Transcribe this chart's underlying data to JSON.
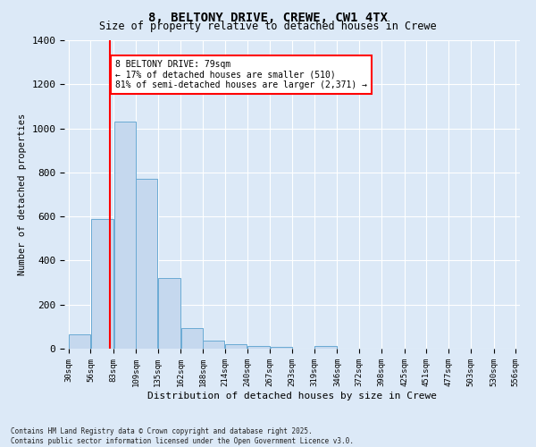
{
  "title1": "8, BELTONY DRIVE, CREWE, CW1 4TX",
  "title2": "Size of property relative to detached houses in Crewe",
  "xlabel": "Distribution of detached houses by size in Crewe",
  "ylabel": "Number of detached properties",
  "bar_color": "#c5d8ee",
  "bar_edge_color": "#6aaad4",
  "background_color": "#dce9f7",
  "grid_color": "#ffffff",
  "vline_x": 79,
  "vline_color": "red",
  "annotation_text": "8 BELTONY DRIVE: 79sqm\n← 17% of detached houses are smaller (510)\n81% of semi-detached houses are larger (2,371) →",
  "annotation_box_color": "white",
  "annotation_box_edge": "red",
  "bins": [
    30,
    56,
    83,
    109,
    135,
    162,
    188,
    214,
    240,
    267,
    293,
    319,
    346,
    372,
    398,
    425,
    451,
    477,
    503,
    530,
    556
  ],
  "counts": [
    65,
    590,
    1030,
    770,
    320,
    95,
    38,
    22,
    13,
    10,
    0,
    13,
    0,
    0,
    0,
    0,
    0,
    0,
    0,
    0
  ],
  "ylim": [
    0,
    1400
  ],
  "yticks": [
    0,
    200,
    400,
    600,
    800,
    1000,
    1200,
    1400
  ],
  "footnote": "Contains HM Land Registry data © Crown copyright and database right 2025.\nContains public sector information licensed under the Open Government Licence v3.0."
}
